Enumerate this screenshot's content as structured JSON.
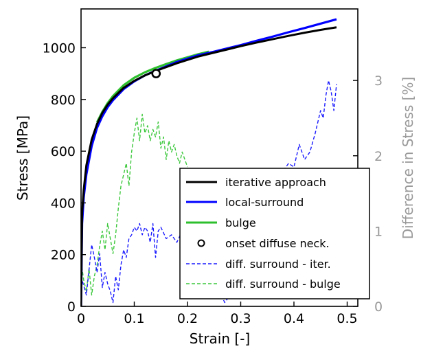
{
  "colors": {
    "iterative": "#000000",
    "local": "#0000ff",
    "bulge": "#2dbf2d",
    "diff_iter": "#1a1aff",
    "diff_bulge": "#3cc83c",
    "right_axis": "#999999"
  },
  "chart_data": {
    "type": "line",
    "xlabel": "Strain [-]",
    "ylabel": "Stress [MPa]",
    "y2label": "Difference in Stress [%]",
    "xlim": [
      0,
      0.52
    ],
    "ylim": [
      0,
      1150
    ],
    "y2lim": [
      0,
      3.95
    ],
    "xticks": [
      0,
      0.1,
      0.2,
      0.3,
      0.4,
      0.5
    ],
    "xtick_labels": [
      "0",
      "0.1",
      "0.2",
      "0.3",
      "0.4",
      "0.5"
    ],
    "yticks": [
      0,
      200,
      400,
      600,
      800,
      1000
    ],
    "ytick_labels": [
      "0",
      "200",
      "400",
      "600",
      "800",
      "1000"
    ],
    "y2ticks": [
      0,
      1,
      2,
      3
    ],
    "y2tick_labels": [
      "0",
      "1",
      "2",
      "3"
    ],
    "legend_position": "lower-right",
    "grid": false,
    "series": [
      {
        "name": "iterative approach",
        "axis": "left",
        "style": "solid",
        "x": [
          0,
          0.002,
          0.005,
          0.01,
          0.02,
          0.03,
          0.04,
          0.05,
          0.06,
          0.08,
          0.1,
          0.12,
          0.14,
          0.16,
          0.18,
          0.2,
          0.22,
          0.25,
          0.28,
          0.3,
          0.33,
          0.36,
          0.39,
          0.42,
          0.45,
          0.48
        ],
        "y": [
          0,
          360,
          450,
          545,
          645,
          705,
          748,
          780,
          805,
          845,
          872,
          893,
          910,
          925,
          940,
          953,
          966,
          981,
          996,
          1006,
          1020,
          1033,
          1046,
          1058,
          1069,
          1079
        ]
      },
      {
        "name": "local-surround",
        "axis": "left",
        "style": "solid",
        "x": [
          0,
          0.002,
          0.005,
          0.01,
          0.02,
          0.03,
          0.04,
          0.05,
          0.06,
          0.08,
          0.1,
          0.12,
          0.14,
          0.16,
          0.18,
          0.2,
          0.22,
          0.25,
          0.28,
          0.3,
          0.33,
          0.36,
          0.39,
          0.42,
          0.45,
          0.48
        ],
        "y": [
          0,
          320,
          420,
          510,
          620,
          690,
          735,
          770,
          797,
          840,
          870,
          893,
          911,
          928,
          945,
          958,
          971,
          985,
          1000,
          1010,
          1027,
          1043,
          1060,
          1076,
          1093,
          1110
        ]
      },
      {
        "name": "bulge",
        "axis": "left",
        "style": "solid",
        "x": [
          0.03,
          0.04,
          0.05,
          0.06,
          0.08,
          0.1,
          0.12,
          0.14,
          0.16,
          0.18,
          0.2,
          0.22,
          0.24
        ],
        "y": [
          712,
          752,
          786,
          813,
          855,
          884,
          905,
          922,
          937,
          951,
          963,
          975,
          985
        ]
      },
      {
        "name": "onset diffuse neck.",
        "axis": "left",
        "style": "marker",
        "x": [
          0.141
        ],
        "y": [
          900
        ]
      },
      {
        "name": "diff. surround - iter.",
        "axis": "right",
        "style": "dashed",
        "x": [
          0,
          0.01,
          0.02,
          0.025,
          0.03,
          0.035,
          0.04,
          0.045,
          0.05,
          0.055,
          0.06,
          0.065,
          0.07,
          0.075,
          0.08,
          0.085,
          0.09,
          0.095,
          0.1,
          0.105,
          0.11,
          0.115,
          0.12,
          0.125,
          0.13,
          0.135,
          0.14,
          0.145,
          0.15,
          0.16,
          0.17,
          0.18,
          0.19,
          0.2,
          0.21,
          0.22,
          0.23,
          0.24,
          0.25,
          0.26,
          0.27,
          0.275,
          0.28,
          0.29,
          0.3,
          0.31,
          0.32,
          0.33,
          0.34,
          0.35,
          0.36,
          0.37,
          0.38,
          0.39,
          0.4,
          0.41,
          0.42,
          0.43,
          0.44,
          0.45,
          0.455,
          0.46,
          0.465,
          0.47,
          0.475,
          0.48
        ],
        "y": [
          0.4,
          0.15,
          0.82,
          0.65,
          0.45,
          0.7,
          0.25,
          0.45,
          0.3,
          0.2,
          0.05,
          0.4,
          0.22,
          0.55,
          0.75,
          0.65,
          0.9,
          0.95,
          1.05,
          1.0,
          1.1,
          0.95,
          1.05,
          1.0,
          0.85,
          1.1,
          0.65,
          1.0,
          1.05,
          0.9,
          0.95,
          0.85,
          1.0,
          0.7,
          0.75,
          0.55,
          0.45,
          0.5,
          0.3,
          0.2,
          0.05,
          0.1,
          0.35,
          0.6,
          0.85,
          1.05,
          1.2,
          1.35,
          1.5,
          1.45,
          1.7,
          1.6,
          1.8,
          1.9,
          1.85,
          2.15,
          1.95,
          2.05,
          2.3,
          2.6,
          2.5,
          2.8,
          3.0,
          2.85,
          2.6,
          2.95
        ]
      },
      {
        "name": "diff. surround - bulge",
        "axis": "right",
        "style": "dashed",
        "x": [
          0,
          0.005,
          0.01,
          0.015,
          0.02,
          0.025,
          0.03,
          0.035,
          0.04,
          0.045,
          0.05,
          0.055,
          0.06,
          0.065,
          0.07,
          0.075,
          0.08,
          0.085,
          0.09,
          0.095,
          0.1,
          0.105,
          0.11,
          0.115,
          0.12,
          0.125,
          0.13,
          0.135,
          0.14,
          0.145,
          0.15,
          0.155,
          0.16,
          0.165,
          0.17,
          0.175,
          0.18,
          0.185,
          0.19,
          0.195,
          0.2
        ],
        "y": [
          0.6,
          0.35,
          0.2,
          0.5,
          0.15,
          0.4,
          0.55,
          0.8,
          1.0,
          0.75,
          1.1,
          0.9,
          0.7,
          0.95,
          1.3,
          1.6,
          1.75,
          1.9,
          1.6,
          2.05,
          2.3,
          2.5,
          2.2,
          2.55,
          2.3,
          2.4,
          2.2,
          2.35,
          2.25,
          2.45,
          2.1,
          2.25,
          1.95,
          2.2,
          2.05,
          2.15,
          2.0,
          1.9,
          2.05,
          1.95,
          1.85
        ]
      }
    ]
  }
}
